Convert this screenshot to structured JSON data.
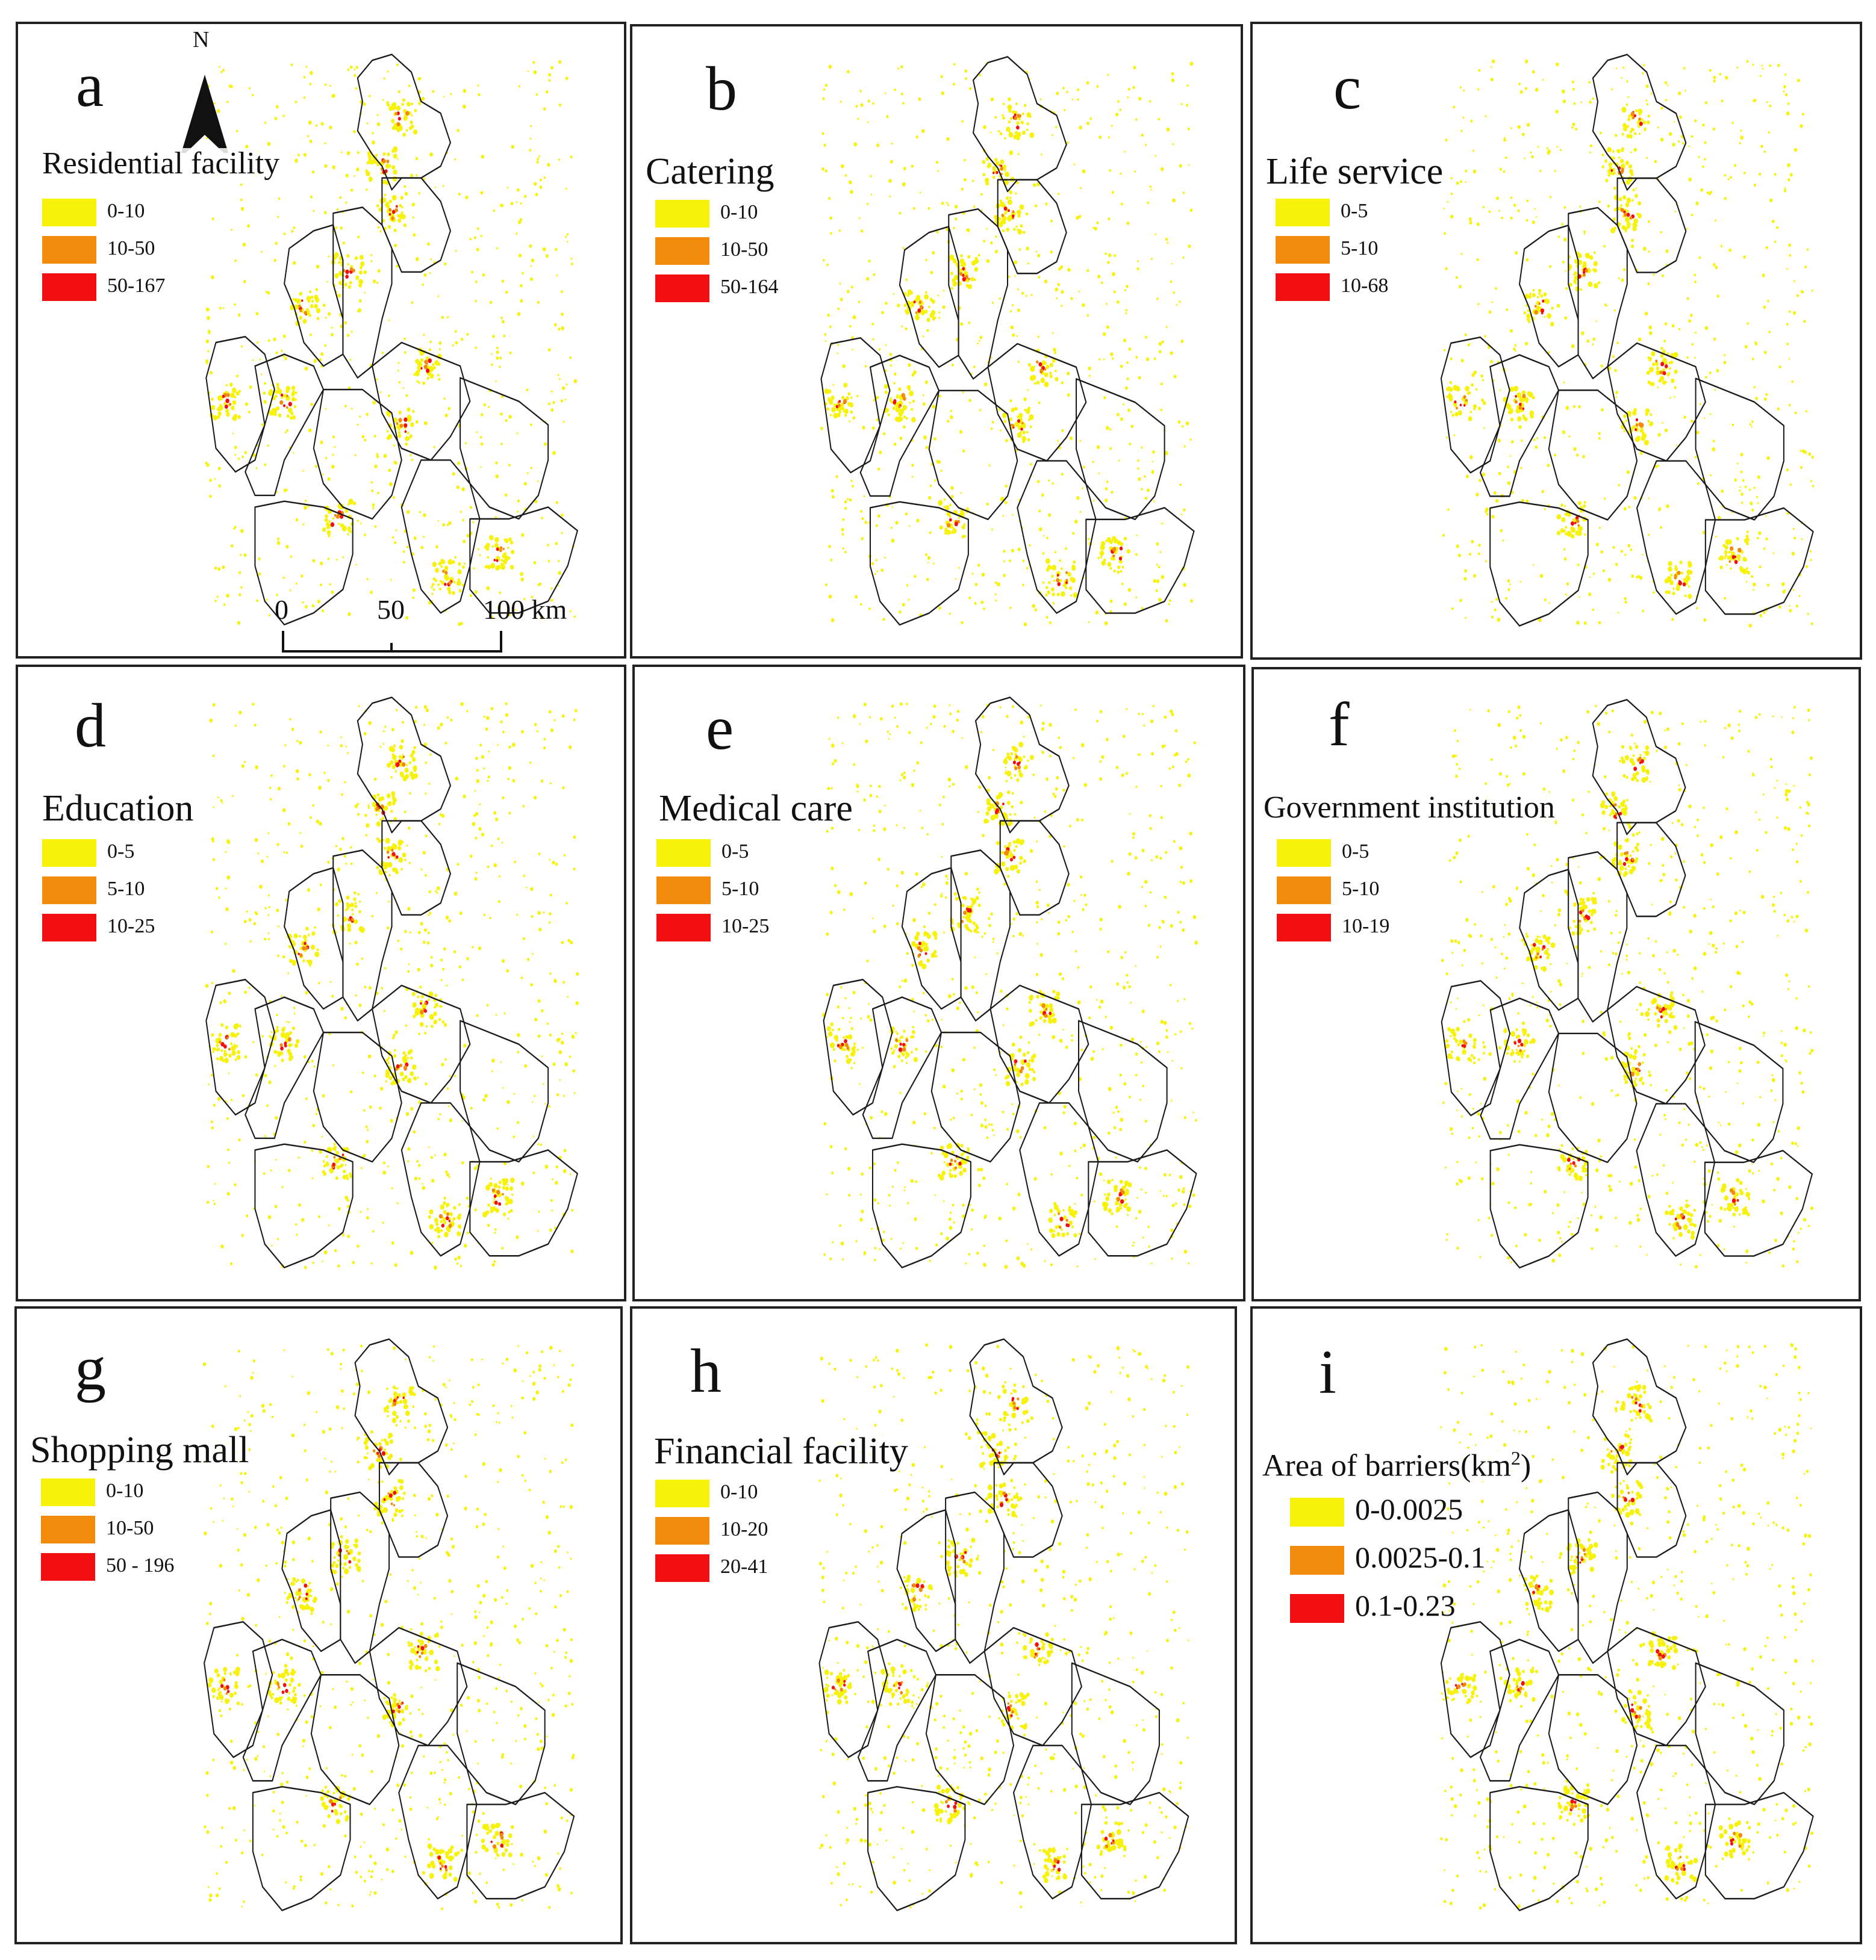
{
  "colors": {
    "low": "#f7f20a",
    "mid": "#f28a0c",
    "high": "#f20f12",
    "outline": "#1a1a1a"
  },
  "map": {
    "north_label": "N",
    "scale_labels": [
      "0",
      "50",
      "100 km"
    ]
  },
  "panels": [
    {
      "letter": "a",
      "title": "Residential facility",
      "legend": [
        "0-10",
        "10-50",
        "50-167"
      ]
    },
    {
      "letter": "b",
      "title": "Catering",
      "legend": [
        "0-10",
        "10-50",
        "50-164"
      ]
    },
    {
      "letter": "c",
      "title": "Life service",
      "legend": [
        "0-5",
        "5-10",
        "10-68"
      ]
    },
    {
      "letter": "d",
      "title": "Education",
      "legend": [
        "0-5",
        "5-10",
        "10-25"
      ]
    },
    {
      "letter": "e",
      "title": "Medical care",
      "legend": [
        "0-5",
        "5-10",
        "10-25"
      ]
    },
    {
      "letter": "f",
      "title": "Government institution",
      "legend": [
        "0-5",
        "5-10",
        "10-19"
      ]
    },
    {
      "letter": "g",
      "title": "Shopping mall",
      "legend": [
        "0-10",
        "10-50",
        "50 - 196"
      ]
    },
    {
      "letter": "h",
      "title": "Financial facility",
      "legend": [
        "0-10",
        "10-20",
        "20-41"
      ]
    },
    {
      "letter": "i",
      "title": "Area of barriers(km2)",
      "title_base": "Area of barriers(km",
      "title_sup": "2",
      "title_end": ")",
      "legend": [
        "0-0.0025",
        "0.0025-0.1",
        "0.1-0.23"
      ]
    }
  ]
}
